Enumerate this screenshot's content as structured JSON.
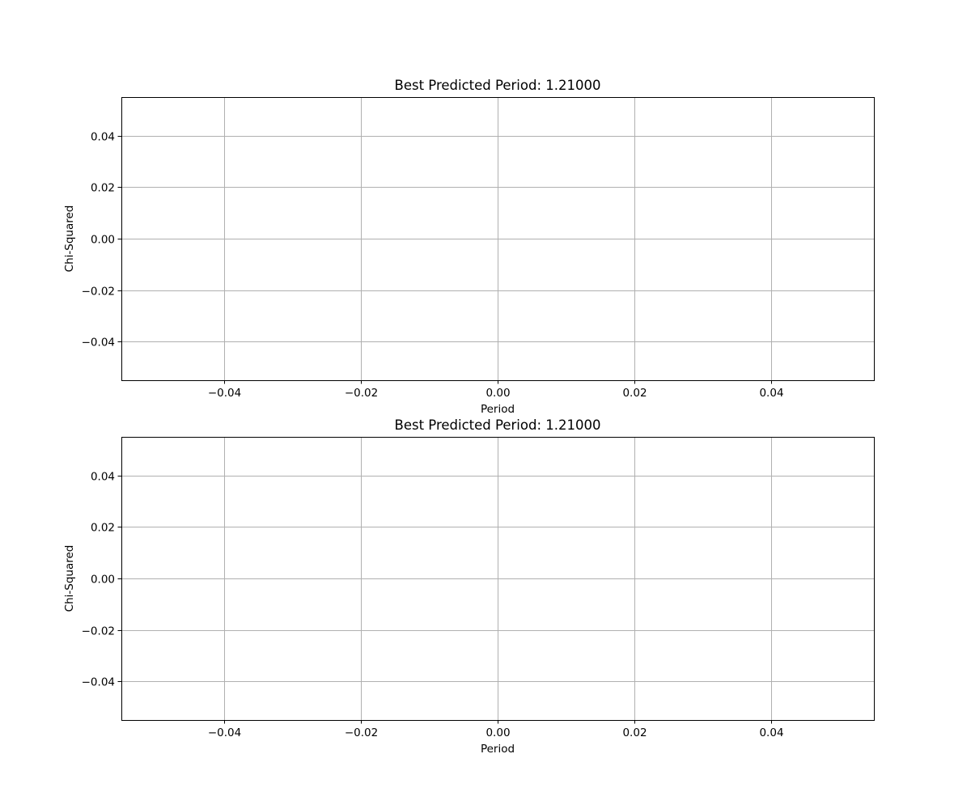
{
  "chart_data": [
    {
      "type": "line",
      "title": "Best Predicted Period: 1.21000",
      "xlabel": "Period",
      "ylabel": "Chi-Squared",
      "xlim": [
        -0.055,
        0.055
      ],
      "ylim": [
        -0.055,
        0.055
      ],
      "xticks": [
        -0.04,
        -0.02,
        0.0,
        0.02,
        0.04
      ],
      "xtick_labels": [
        "−0.04",
        "−0.02",
        "0.00",
        "0.02",
        "0.04"
      ],
      "yticks": [
        0.04,
        0.02,
        0.0,
        -0.02,
        -0.04
      ],
      "ytick_labels": [
        "0.04",
        "0.02",
        "0.00",
        "−0.02",
        "−0.04"
      ],
      "grid": true,
      "series": []
    },
    {
      "type": "line",
      "title": "Best Predicted Period: 1.21000",
      "xlabel": "Period",
      "ylabel": "Chi-Squared",
      "xlim": [
        -0.055,
        0.055
      ],
      "ylim": [
        -0.055,
        0.055
      ],
      "xticks": [
        -0.04,
        -0.02,
        0.0,
        0.02,
        0.04
      ],
      "xtick_labels": [
        "−0.04",
        "−0.02",
        "0.00",
        "0.02",
        "0.04"
      ],
      "yticks": [
        0.04,
        0.02,
        0.0,
        -0.02,
        -0.04
      ],
      "ytick_labels": [
        "0.04",
        "0.02",
        "0.00",
        "−0.02",
        "−0.04"
      ],
      "grid": true,
      "series": []
    }
  ]
}
